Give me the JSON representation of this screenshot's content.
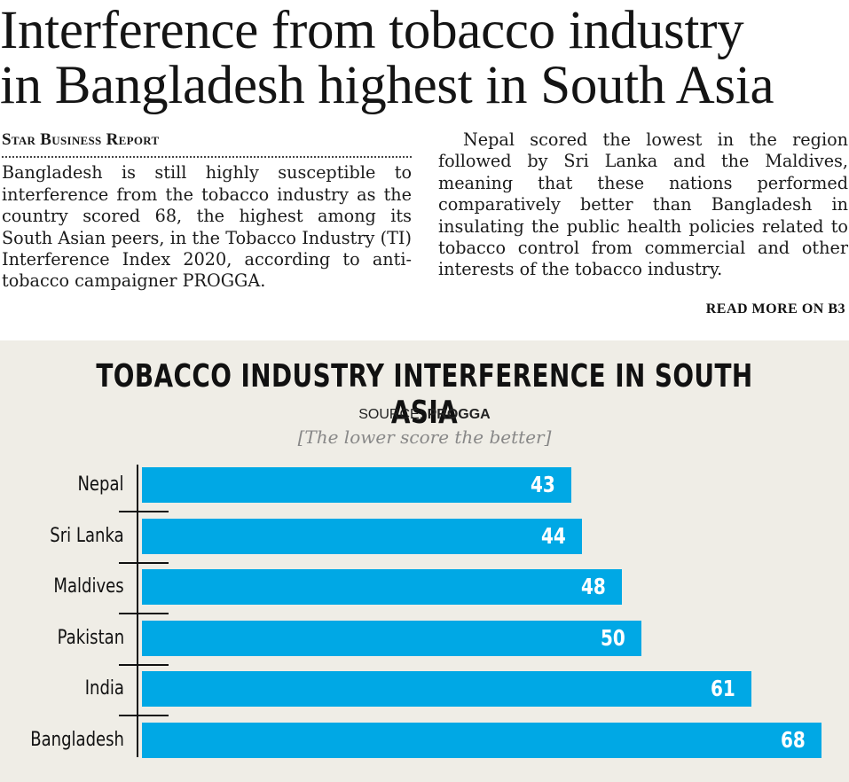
{
  "article": {
    "headline_line1": "Interference from tobacco industry",
    "headline_line2": "in Bangladesh highest in South Asia",
    "byline": "Star Business Report",
    "left_paragraph": "Bangladesh is still highly susceptible to interference from the tobacco industry as the country scored 68, the highest among its South Asian peers, in the Tobacco Industry (TI) Interference Index 2020, according to anti-tobacco campaigner PROGGA.",
    "right_paragraph": "Nepal scored the lowest in the region followed by Sri Lanka and the Maldives, meaning that these nations performed comparatively better than Bangladesh in insulating the public health policies related to tobacco control from commercial and other interests of the tobacco industry.",
    "read_more": "READ MORE ON B3"
  },
  "chart_data": {
    "type": "bar",
    "orientation": "horizontal",
    "title": "TOBACCO INDUSTRY INTERFERENCE IN SOUTH ASIA",
    "source_prefix": "SOURCE:",
    "source_name": "PROGGA",
    "note": "[The lower score the better]",
    "categories": [
      "Nepal",
      "Sri Lanka",
      "Maldives",
      "Pakistan",
      "India",
      "Bangladesh"
    ],
    "values": [
      43,
      44,
      48,
      50,
      61,
      68
    ],
    "bar_color": "#00a8e5",
    "background_color": "#efede6",
    "grid": false
  }
}
